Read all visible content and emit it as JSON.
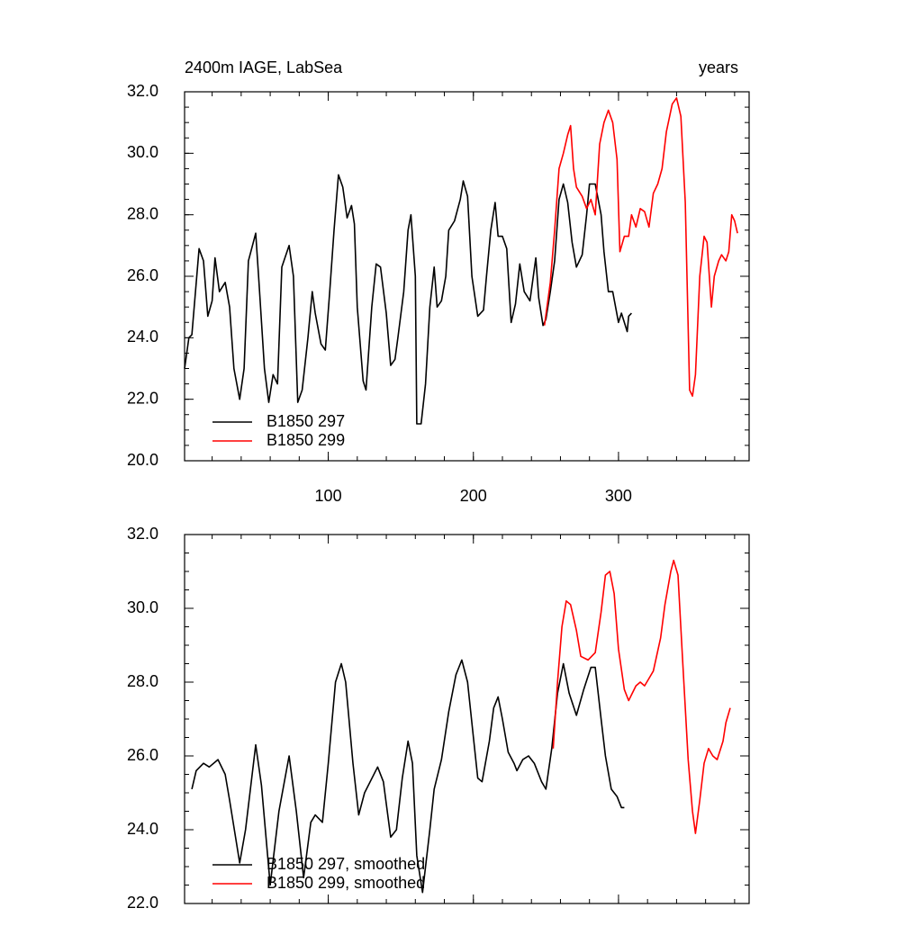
{
  "chart_data": [
    {
      "type": "line",
      "title": "2400m IAGE, LabSea",
      "right_title": "years",
      "xlim": [
        1,
        390
      ],
      "xticks": [
        100,
        200,
        300
      ],
      "ylim": [
        20,
        32
      ],
      "yticks": [
        {
          "value": 20,
          "label": "20.0"
        },
        {
          "value": 22,
          "label": "22.0"
        },
        {
          "value": 24,
          "label": "24.0"
        },
        {
          "value": 26,
          "label": "26.0"
        },
        {
          "value": 28,
          "label": "28.0"
        },
        {
          "value": 30,
          "label": "30.0"
        },
        {
          "value": 32,
          "label": "32.0"
        }
      ],
      "legend": "lower left",
      "series": [
        {
          "name": "B1850 297",
          "color": "#000000",
          "x": [
            1,
            4,
            6,
            11,
            14,
            17,
            20,
            22,
            25,
            29,
            32,
            35,
            39,
            42,
            45,
            50,
            52,
            56,
            59,
            62,
            65,
            68,
            73,
            76,
            79,
            82,
            86,
            89,
            91,
            95,
            98,
            101,
            104,
            107,
            110,
            113,
            116,
            118,
            120,
            124,
            126,
            130,
            133,
            136,
            140,
            143,
            146,
            148,
            152,
            155,
            157,
            160,
            161,
            164,
            167,
            170,
            173,
            175,
            178,
            181,
            183,
            187,
            191,
            193,
            196,
            199,
            203,
            207,
            209,
            212,
            215,
            217,
            220,
            223,
            226,
            229,
            232,
            235,
            239,
            243,
            245,
            248,
            250,
            253,
            256,
            259,
            262,
            265,
            268,
            271,
            275,
            278,
            280,
            284,
            288,
            290,
            293,
            296,
            300,
            302,
            306,
            307,
            309
          ],
          "values": [
            23.0,
            24.0,
            24.1,
            26.9,
            26.5,
            24.7,
            25.2,
            26.6,
            25.5,
            25.8,
            25.0,
            23.0,
            22.0,
            23.0,
            26.5,
            27.4,
            26.0,
            23.0,
            21.9,
            22.8,
            22.5,
            26.3,
            27.0,
            26.0,
            21.9,
            22.3,
            24.0,
            25.5,
            24.8,
            23.8,
            23.6,
            25.5,
            27.5,
            29.3,
            28.9,
            27.9,
            28.3,
            27.7,
            25.0,
            22.6,
            22.3,
            25.0,
            26.4,
            26.3,
            24.8,
            23.1,
            23.3,
            24.0,
            25.5,
            27.5,
            28.0,
            26.0,
            21.2,
            21.2,
            22.5,
            25.0,
            26.3,
            25.0,
            25.2,
            26.0,
            27.5,
            27.8,
            28.5,
            29.1,
            28.6,
            26.0,
            24.7,
            24.9,
            26.0,
            27.5,
            28.4,
            27.3,
            27.3,
            26.9,
            24.5,
            25.1,
            26.4,
            25.5,
            25.2,
            26.6,
            25.3,
            24.4,
            24.6,
            25.5,
            26.5,
            28.5,
            29.0,
            28.4,
            27.1,
            26.3,
            26.7,
            28.0,
            29.0,
            29.0,
            28.0,
            26.8,
            25.5,
            25.5,
            24.5,
            24.8,
            24.2,
            24.7,
            24.8
          ]
        },
        {
          "name": "B1850 299",
          "color": "#ff0000",
          "x": [
            249,
            253,
            256,
            259,
            262,
            265,
            267,
            269,
            271,
            275,
            278,
            281,
            284,
            287,
            290,
            293,
            296,
            299,
            301,
            304,
            307,
            309,
            312,
            315,
            318,
            321,
            324,
            327,
            330,
            333,
            337,
            340,
            343,
            346,
            349,
            351,
            353,
            356,
            359,
            361,
            364,
            366,
            369,
            371,
            374,
            376,
            378,
            380,
            382
          ],
          "values": [
            24.4,
            25.8,
            27.5,
            29.5,
            30.0,
            30.6,
            30.9,
            29.5,
            28.9,
            28.6,
            28.2,
            28.5,
            28.0,
            30.3,
            31.0,
            31.4,
            31.0,
            29.8,
            26.8,
            27.3,
            27.3,
            28.0,
            27.6,
            28.2,
            28.1,
            27.6,
            28.7,
            29.0,
            29.5,
            30.7,
            31.6,
            31.8,
            31.2,
            28.4,
            22.3,
            22.1,
            22.8,
            26.0,
            27.3,
            27.1,
            25.0,
            26.0,
            26.5,
            26.7,
            26.5,
            26.8,
            28.0,
            27.8,
            27.4
          ]
        }
      ]
    },
    {
      "type": "line",
      "xlim": [
        1,
        390
      ],
      "xticks": [
        100,
        200,
        300
      ],
      "xtick_labels": false,
      "ylim": [
        22,
        32
      ],
      "yticks": [
        {
          "value": 22,
          "label": "22.0"
        },
        {
          "value": 24,
          "label": "24.0"
        },
        {
          "value": 26,
          "label": "26.0"
        },
        {
          "value": 28,
          "label": "28.0"
        },
        {
          "value": 30,
          "label": "30.0"
        },
        {
          "value": 32,
          "label": "32.0"
        }
      ],
      "legend": "lower left",
      "series": [
        {
          "name": "B1850 297, smoothed",
          "color": "#000000",
          "x": [
            6,
            9,
            14,
            18,
            24,
            29,
            32,
            39,
            43,
            50,
            54,
            60,
            66,
            73,
            78,
            83,
            88,
            91,
            96,
            100,
            105,
            109,
            112,
            117,
            121,
            125,
            134,
            138,
            143,
            147,
            151,
            155,
            158,
            161,
            165,
            170,
            173,
            178,
            183,
            188,
            192,
            196,
            200,
            203,
            206,
            211,
            214,
            217,
            220,
            224,
            228,
            230,
            234,
            238,
            242,
            247,
            250,
            254,
            258,
            262,
            266,
            271,
            276,
            281,
            284,
            288,
            291,
            295,
            299,
            302,
            304
          ],
          "values": [
            25.1,
            25.6,
            25.8,
            25.7,
            25.9,
            25.5,
            24.8,
            23.1,
            24.0,
            26.3,
            25.2,
            22.5,
            24.5,
            26.0,
            24.5,
            22.7,
            24.2,
            24.4,
            24.2,
            25.8,
            28.0,
            28.5,
            28.0,
            25.8,
            24.4,
            25.0,
            25.7,
            25.3,
            23.8,
            24.0,
            25.4,
            26.4,
            25.8,
            23.3,
            22.3,
            24.0,
            25.1,
            25.9,
            27.2,
            28.2,
            28.6,
            28.0,
            26.5,
            25.4,
            25.3,
            26.4,
            27.3,
            27.6,
            27.0,
            26.1,
            25.8,
            25.6,
            25.9,
            26.0,
            25.8,
            25.3,
            25.1,
            26.2,
            27.7,
            28.5,
            27.7,
            27.1,
            27.8,
            28.4,
            28.4,
            27.0,
            26.0,
            25.1,
            24.9,
            24.6,
            24.6
          ]
        },
        {
          "name": "B1850 299, smoothed",
          "color": "#ff0000",
          "x": [
            255,
            258,
            261,
            264,
            267,
            271,
            274,
            279,
            284,
            288,
            291,
            294,
            297,
            300,
            304,
            307,
            312,
            315,
            318,
            321,
            324,
            329,
            332,
            336,
            338,
            341,
            344,
            348,
            351,
            353,
            356,
            359,
            362,
            365,
            368,
            372,
            374,
            377
          ],
          "values": [
            26.2,
            28.0,
            29.5,
            30.2,
            30.1,
            29.4,
            28.7,
            28.6,
            28.8,
            29.9,
            30.9,
            31.0,
            30.4,
            28.9,
            27.8,
            27.5,
            27.9,
            28.0,
            27.9,
            28.1,
            28.3,
            29.2,
            30.1,
            31.0,
            31.3,
            30.9,
            28.7,
            25.9,
            24.5,
            23.9,
            24.8,
            25.8,
            26.2,
            26.0,
            25.9,
            26.4,
            26.9,
            27.3
          ]
        }
      ]
    }
  ]
}
